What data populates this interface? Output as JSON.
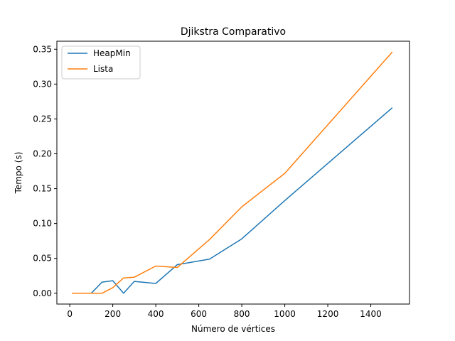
{
  "chart_data": {
    "type": "line",
    "title": "Djikstra Comparativo",
    "xlabel": "Número de vértices",
    "ylabel": "Tempo (s)",
    "xlim": [
      -60,
      1580
    ],
    "ylim": [
      -0.0155,
      0.3615
    ],
    "xticks": [
      0,
      200,
      400,
      600,
      800,
      1000,
      1200,
      1400
    ],
    "xtick_labels": [
      "0",
      "200",
      "400",
      "600",
      "800",
      "1000",
      "1200",
      "1400"
    ],
    "yticks": [
      0.0,
      0.05,
      0.1,
      0.15,
      0.2,
      0.25,
      0.3,
      0.35
    ],
    "ytick_labels": [
      "0.00",
      "0.05",
      "0.10",
      "0.15",
      "0.20",
      "0.25",
      "0.30",
      "0.35"
    ],
    "grid": false,
    "legend_position": "top-left",
    "series": [
      {
        "name": "HeapMin",
        "color": "#1f77b4",
        "x": [
          10,
          50,
          100,
          150,
          200,
          250,
          300,
          400,
          500,
          650,
          800,
          1000,
          1500
        ],
        "y": [
          0.0,
          0.0,
          0.0,
          0.016,
          0.018,
          0.0,
          0.017,
          0.014,
          0.041,
          0.049,
          0.078,
          0.133,
          0.266
        ]
      },
      {
        "name": "Lista",
        "color": "#ff7f0e",
        "x": [
          10,
          50,
          100,
          150,
          200,
          250,
          300,
          400,
          500,
          650,
          800,
          1000,
          1500
        ],
        "y": [
          0.0,
          0.0,
          0.0,
          0.0,
          0.008,
          0.022,
          0.023,
          0.039,
          0.037,
          0.077,
          0.124,
          0.172,
          0.346
        ]
      }
    ]
  }
}
